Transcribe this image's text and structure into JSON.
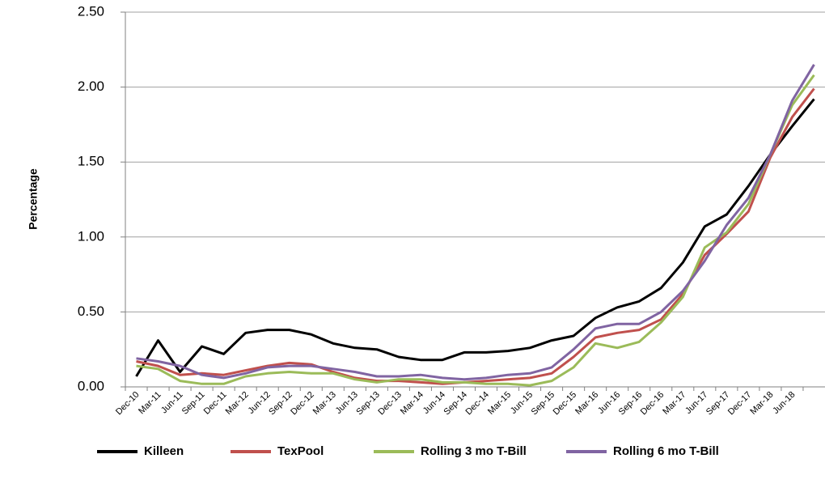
{
  "chart_data": {
    "type": "line",
    "y_label": "Percentage",
    "categories": [
      "Dec-10",
      "Mar-11",
      "Jun-11",
      "Sep-11",
      "Dec-11",
      "Mar-12",
      "Jun-12",
      "Sep-12",
      "Dec-12",
      "Mar-13",
      "Jun-13",
      "Sep-13",
      "Dec-13",
      "Mar-14",
      "Jun-14",
      "Sep-14",
      "Dec-14",
      "Mar-15",
      "Jun-15",
      "Sep-15",
      "Dec-15",
      "Mar-16",
      "Jun-16",
      "Sep-16",
      "Dec-16",
      "Mar-17",
      "Jun-17",
      "Sep-17",
      "Dec-17",
      "Mar-18",
      "Jun-18",
      null
    ],
    "series": [
      {
        "name": "Killeen",
        "color": "#000000",
        "values": [
          0.07,
          0.31,
          0.1,
          0.27,
          0.22,
          0.36,
          0.38,
          0.38,
          0.35,
          0.29,
          0.26,
          0.25,
          0.2,
          0.18,
          0.18,
          0.23,
          0.23,
          0.24,
          0.26,
          0.31,
          0.34,
          0.46,
          0.53,
          0.57,
          0.66,
          0.83,
          1.07,
          1.15,
          1.34,
          1.55,
          1.74,
          1.92
        ]
      },
      {
        "name": "TexPool",
        "color": "#c0504d",
        "values": [
          0.17,
          0.14,
          0.08,
          0.09,
          0.08,
          0.11,
          0.14,
          0.16,
          0.15,
          0.1,
          0.06,
          0.04,
          0.04,
          0.03,
          0.02,
          0.03,
          0.04,
          0.05,
          0.06,
          0.09,
          0.2,
          0.33,
          0.36,
          0.38,
          0.45,
          0.62,
          0.88,
          1.02,
          1.17,
          1.53,
          1.8,
          1.99
        ]
      },
      {
        "name": "Rolling 3 mo T-Bill",
        "color": "#9bbb59",
        "values": [
          0.14,
          0.12,
          0.04,
          0.02,
          0.02,
          0.07,
          0.09,
          0.1,
          0.09,
          0.09,
          0.05,
          0.03,
          0.05,
          0.05,
          0.03,
          0.03,
          0.02,
          0.02,
          0.01,
          0.04,
          0.13,
          0.29,
          0.26,
          0.3,
          0.43,
          0.6,
          0.93,
          1.03,
          1.22,
          1.55,
          1.88,
          2.08
        ]
      },
      {
        "name": "Rolling 6 mo T-Bill",
        "color": "#8064a2",
        "values": [
          0.19,
          0.17,
          0.14,
          0.08,
          0.06,
          0.09,
          0.13,
          0.14,
          0.14,
          0.12,
          0.1,
          0.07,
          0.07,
          0.08,
          0.06,
          0.05,
          0.06,
          0.08,
          0.09,
          0.13,
          0.25,
          0.39,
          0.42,
          0.42,
          0.5,
          0.64,
          0.84,
          1.08,
          1.26,
          1.55,
          1.91,
          2.15
        ]
      }
    ],
    "ylim": [
      0,
      2.5
    ],
    "yticks": [
      {
        "value": 0,
        "label": "0.00"
      },
      {
        "value": 0.5,
        "label": "0.50"
      },
      {
        "value": 1,
        "label": "1.00"
      },
      {
        "value": 1.5,
        "label": "1.50"
      },
      {
        "value": 2,
        "label": "2.00"
      },
      {
        "value": 2.5,
        "label": "2.50"
      }
    ],
    "grid": true,
    "legend": "bottom"
  }
}
